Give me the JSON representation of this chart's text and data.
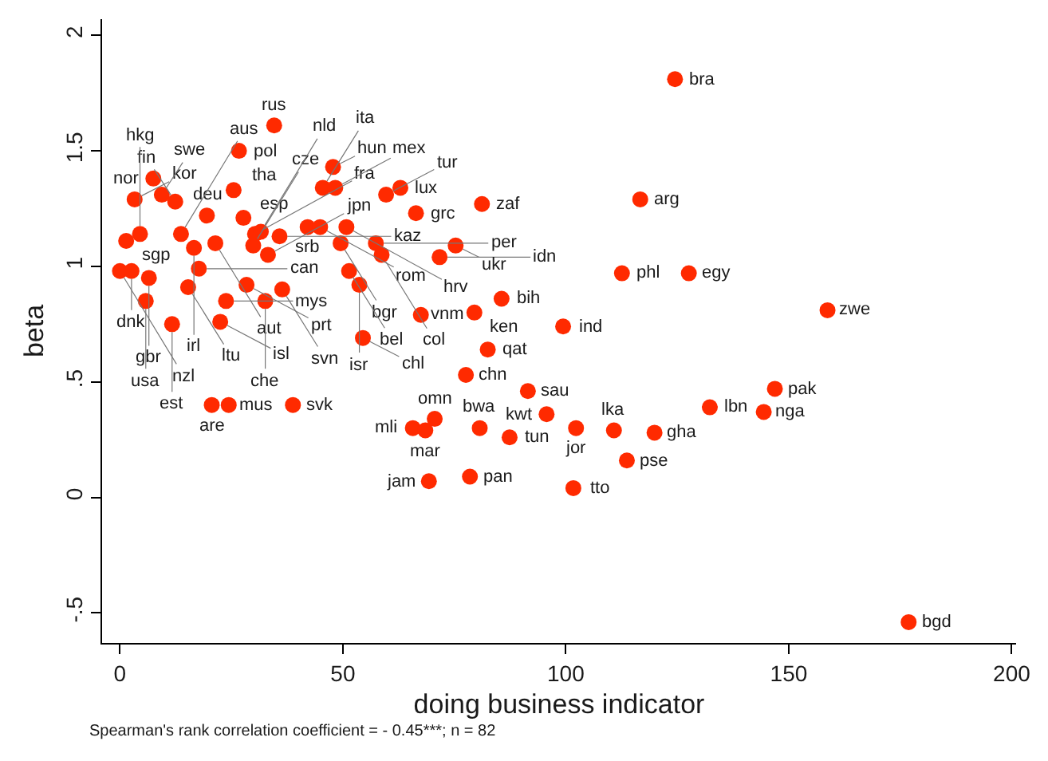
{
  "chart_data": {
    "type": "scatter",
    "xlabel": "doing business indicator",
    "ylabel": "beta",
    "xlim": [
      -4,
      201
    ],
    "ylim": [
      -0.63,
      2.07
    ],
    "xticks": [
      0,
      50,
      100,
      150,
      200
    ],
    "yticks": [
      {
        "value": -0.5,
        "label": "-.5"
      },
      0,
      {
        "value": 0.5,
        "label": ".5"
      },
      1,
      1.5,
      2
    ],
    "marker": "circle",
    "series": [
      {
        "color": "#ff2a00",
        "x": [
          27.7,
          19.5,
          25.5,
          7.5,
          3.3,
          9.4,
          12.4,
          4.5,
          1.4,
          13.7,
          16.6,
          21.4,
          17.7,
          0,
          2.6,
          6.5,
          15.3,
          5.8,
          11.7,
          22.5,
          23.8,
          28.4,
          32.6,
          36.4,
          33.2,
          29.9,
          30.3,
          31.6,
          35.8,
          34.6,
          26.7,
          47.8,
          45.5,
          48.3,
          62.9,
          59.7,
          66.4,
          81.2,
          42.1,
          44.9,
          50.8,
          49.5,
          57.4,
          58.7,
          71.7,
          75.3,
          51.4,
          53.7,
          54.5,
          67.5,
          79.5,
          85.6,
          99.4,
          82.5,
          77.6,
          91.5,
          95.7,
          102.3,
          110.8,
          119.9,
          113.7,
          101.7,
          78.5,
          69.3,
          70.6,
          65.7,
          68.5,
          80.7,
          87.4,
          132.3,
          144.4,
          146.9,
          112.6,
          127.6,
          116.7,
          124.5,
          158.7,
          176.9,
          20.6,
          24.4,
          38.8
        ],
        "values": [
          1.21,
          1.22,
          1.33,
          1.38,
          1.29,
          1.31,
          1.28,
          1.14,
          1.11,
          1.14,
          1.08,
          1.1,
          0.99,
          0.98,
          0.98,
          0.95,
          0.91,
          0.85,
          0.75,
          0.76,
          0.85,
          0.92,
          0.85,
          0.9,
          1.05,
          1.09,
          1.14,
          1.15,
          1.13,
          1.61,
          1.5,
          1.43,
          1.34,
          1.34,
          1.34,
          1.31,
          1.23,
          1.27,
          1.17,
          1.17,
          1.17,
          1.1,
          1.1,
          1.05,
          1.04,
          1.09,
          0.98,
          0.92,
          0.69,
          0.79,
          0.8,
          0.86,
          0.74,
          0.64,
          0.53,
          0.46,
          0.36,
          0.3,
          0.29,
          0.28,
          0.16,
          0.04,
          0.09,
          0.07,
          0.34,
          0.3,
          0.29,
          0.3,
          0.26,
          0.39,
          0.37,
          0.47,
          0.97,
          0.97,
          1.29,
          1.81,
          0.81,
          -0.54,
          0.4,
          0.4,
          0.4
        ]
      }
    ],
    "annotations": [
      {
        "text": "esp",
        "x": 27.7,
        "y": 1.21
      },
      {
        "text": "deu",
        "x": 19.5,
        "y": 1.22
      },
      {
        "text": "tha",
        "x": 25.5,
        "y": 1.33
      },
      {
        "text": "nor",
        "x": 7.5,
        "y": 1.38
      },
      {
        "text": "kor",
        "x": 3.3,
        "y": 1.29
      },
      {
        "text": "swe",
        "x": 9.4,
        "y": 1.31
      },
      {
        "text": "fin",
        "x": 12.4,
        "y": 1.28
      },
      {
        "text": "hkg",
        "x": 4.5,
        "y": 1.14
      },
      {
        "text": "sgp",
        "x": 1.4,
        "y": 1.11
      },
      {
        "text": "aus",
        "x": 13.7,
        "y": 1.14
      },
      {
        "text": "irl",
        "x": 16.6,
        "y": 1.08
      },
      {
        "text": "aut",
        "x": 21.4,
        "y": 1.1
      },
      {
        "text": "can",
        "x": 17.7,
        "y": 0.99
      },
      {
        "text": "nzl",
        "x": 0,
        "y": 0.98
      },
      {
        "text": "dnk",
        "x": 2.6,
        "y": 0.98
      },
      {
        "text": "gbr",
        "x": 6.5,
        "y": 0.95
      },
      {
        "text": "ltu",
        "x": 15.3,
        "y": 0.91
      },
      {
        "text": "usa",
        "x": 5.8,
        "y": 0.85
      },
      {
        "text": "est",
        "x": 11.7,
        "y": 0.75
      },
      {
        "text": "isl",
        "x": 22.5,
        "y": 0.76
      },
      {
        "text": "mys",
        "x": 23.8,
        "y": 0.85
      },
      {
        "text": "prt",
        "x": 28.4,
        "y": 0.92
      },
      {
        "text": "che",
        "x": 32.6,
        "y": 0.85
      },
      {
        "text": "svn",
        "x": 36.4,
        "y": 0.9
      },
      {
        "text": "jpn",
        "x": 33.2,
        "y": 1.05
      },
      {
        "text": "cze",
        "x": 29.9,
        "y": 1.09
      },
      {
        "text": "fra",
        "x": 30.3,
        "y": 1.14
      },
      {
        "text": "nld",
        "x": 31.6,
        "y": 1.15
      },
      {
        "text": "kaz",
        "x": 35.8,
        "y": 1.13
      },
      {
        "text": "rus",
        "x": 34.6,
        "y": 1.61
      },
      {
        "text": "pol",
        "x": 26.7,
        "y": 1.5
      },
      {
        "text": "hun",
        "x": 47.8,
        "y": 1.43
      },
      {
        "text": "ita",
        "x": 45.5,
        "y": 1.34
      },
      {
        "text": "mex",
        "x": 48.3,
        "y": 1.34
      },
      {
        "text": "lux",
        "x": 62.9,
        "y": 1.34
      },
      {
        "text": "tur",
        "x": 59.7,
        "y": 1.31
      },
      {
        "text": "grc",
        "x": 66.4,
        "y": 1.23
      },
      {
        "text": "zaf",
        "x": 81.2,
        "y": 1.27
      },
      {
        "text": "srb",
        "x": 42.1,
        "y": 1.17
      },
      {
        "text": "rom",
        "x": 44.9,
        "y": 1.17
      },
      {
        "text": "hrv",
        "x": 50.8,
        "y": 1.17
      },
      {
        "text": "bgr",
        "x": 49.5,
        "y": 1.1
      },
      {
        "text": "per",
        "x": 57.4,
        "y": 1.1
      },
      {
        "text": "col",
        "x": 58.7,
        "y": 1.05
      },
      {
        "text": "idn",
        "x": 71.7,
        "y": 1.04
      },
      {
        "text": "ukr",
        "x": 75.3,
        "y": 1.09
      },
      {
        "text": "bel",
        "x": 51.4,
        "y": 0.98
      },
      {
        "text": "isr",
        "x": 53.7,
        "y": 0.92
      },
      {
        "text": "chl",
        "x": 54.5,
        "y": 0.69
      },
      {
        "text": "vnm",
        "x": 67.5,
        "y": 0.79
      },
      {
        "text": "ken",
        "x": 79.5,
        "y": 0.8
      },
      {
        "text": "bih",
        "x": 85.6,
        "y": 0.86
      },
      {
        "text": "ind",
        "x": 99.4,
        "y": 0.74
      },
      {
        "text": "qat",
        "x": 82.5,
        "y": 0.64
      },
      {
        "text": "chn",
        "x": 77.6,
        "y": 0.53
      },
      {
        "text": "sau",
        "x": 91.5,
        "y": 0.46
      },
      {
        "text": "kwt",
        "x": 95.7,
        "y": 0.36
      },
      {
        "text": "jor",
        "x": 102.3,
        "y": 0.3
      },
      {
        "text": "lka",
        "x": 110.8,
        "y": 0.29
      },
      {
        "text": "gha",
        "x": 119.9,
        "y": 0.28
      },
      {
        "text": "pse",
        "x": 113.7,
        "y": 0.16
      },
      {
        "text": "tto",
        "x": 101.7,
        "y": 0.04
      },
      {
        "text": "pan",
        "x": 78.5,
        "y": 0.09
      },
      {
        "text": "jam",
        "x": 69.3,
        "y": 0.07
      },
      {
        "text": "omn",
        "x": 70.6,
        "y": 0.34
      },
      {
        "text": "mli",
        "x": 65.7,
        "y": 0.3
      },
      {
        "text": "mar",
        "x": 68.5,
        "y": 0.29
      },
      {
        "text": "bwa",
        "x": 80.7,
        "y": 0.3
      },
      {
        "text": "tun",
        "x": 87.4,
        "y": 0.26
      },
      {
        "text": "lbn",
        "x": 132.3,
        "y": 0.39
      },
      {
        "text": "nga",
        "x": 144.4,
        "y": 0.37
      },
      {
        "text": "pak",
        "x": 146.9,
        "y": 0.47
      },
      {
        "text": "phl",
        "x": 112.6,
        "y": 0.97
      },
      {
        "text": "egy",
        "x": 127.6,
        "y": 0.97
      },
      {
        "text": "arg",
        "x": 116.7,
        "y": 1.29
      },
      {
        "text": "bra",
        "x": 124.5,
        "y": 1.81
      },
      {
        "text": "zwe",
        "x": 158.7,
        "y": 0.81
      },
      {
        "text": "bgd",
        "x": 176.9,
        "y": -0.54
      },
      {
        "text": "are",
        "x": 20.6,
        "y": 0.4
      },
      {
        "text": "mus",
        "x": 24.4,
        "y": 0.4
      },
      {
        "text": "svk",
        "x": 38.8,
        "y": 0.4
      },
      "Spearman's rank correlation coefficient = - 0.45***; n = 82"
    ]
  }
}
